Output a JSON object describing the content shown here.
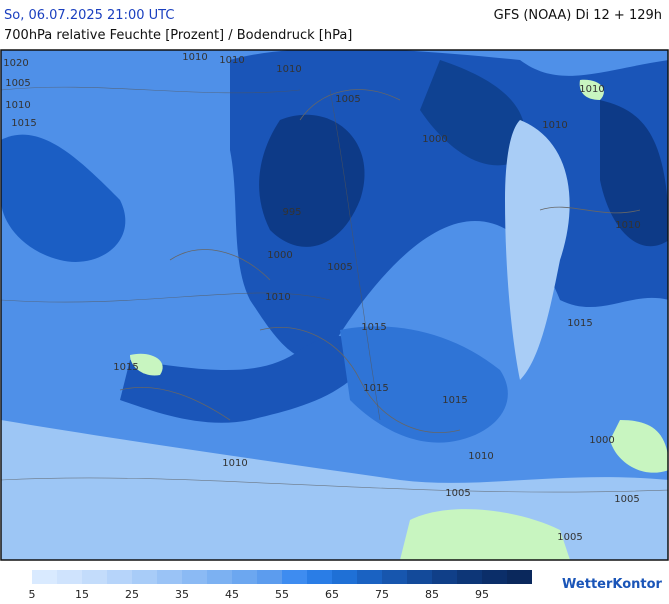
{
  "header": {
    "datetime": "So, 06.07.2025 21:00 UTC",
    "subtitle": "700hPa relative Feuchte [Prozent] / Bodendruck [hPa]",
    "model": "GFS (NOAA) Di 12 + 129h"
  },
  "isobar_labels": [
    "1020",
    "1005",
    "1010",
    "1015",
    "1010",
    "1010",
    "1005",
    "1010",
    "1000",
    "1010",
    "995",
    "1000",
    "1005",
    "1010",
    "1010",
    "1015",
    "1015",
    "1015",
    "1015",
    "1015",
    "1010",
    "1010",
    "1000",
    "1005",
    "1005",
    "1010",
    "1005"
  ],
  "colorbar": {
    "colors": [
      "#d9eaff",
      "#cfe3fd",
      "#c3dcfb",
      "#b6d4fa",
      "#a8ccf8",
      "#9ac3f6",
      "#8bbaf4",
      "#7cb1f2",
      "#6ca7f0",
      "#5c9cee",
      "#3e8cf0",
      "#2a7de6",
      "#1f70d6",
      "#1a62c2",
      "#1756ae",
      "#134a9a",
      "#103f88",
      "#0d3677",
      "#0b2e69",
      "#0a285c"
    ],
    "ticks": [
      5,
      15,
      25,
      35,
      45,
      55,
      65,
      75,
      85,
      95
    ]
  },
  "brand": "WetterKontor"
}
